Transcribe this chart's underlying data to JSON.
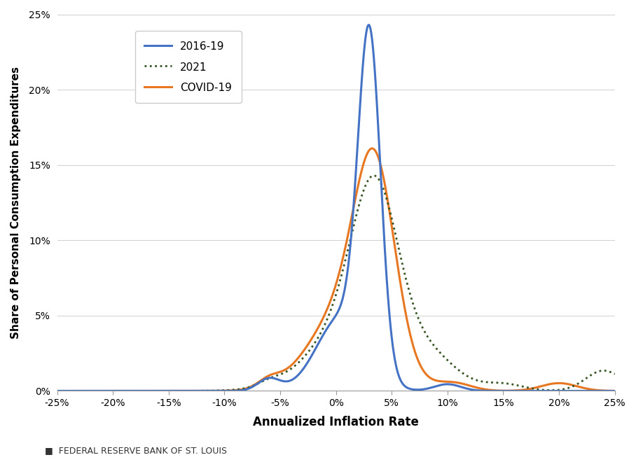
{
  "title": "",
  "xlabel": "Annualized Inflation Rate",
  "ylabel": "Share of Personal Consumption Expenditures",
  "xlim": [
    -0.25,
    0.25
  ],
  "ylim": [
    0,
    0.25
  ],
  "xticks": [
    -0.25,
    -0.2,
    -0.15,
    -0.1,
    -0.05,
    0.0,
    0.05,
    0.1,
    0.15,
    0.2,
    0.25
  ],
  "yticks": [
    0.0,
    0.05,
    0.1,
    0.15,
    0.2,
    0.25
  ],
  "color_2016": "#4472C4",
  "color_2021": "#375623",
  "color_covid": "#E87722",
  "legend_labels": [
    "2016-19",
    "2021",
    "COVID-19"
  ],
  "footer": "■  FEDERAL RESERVE BANK OF ST. LOUIS",
  "background_color": "#ffffff"
}
